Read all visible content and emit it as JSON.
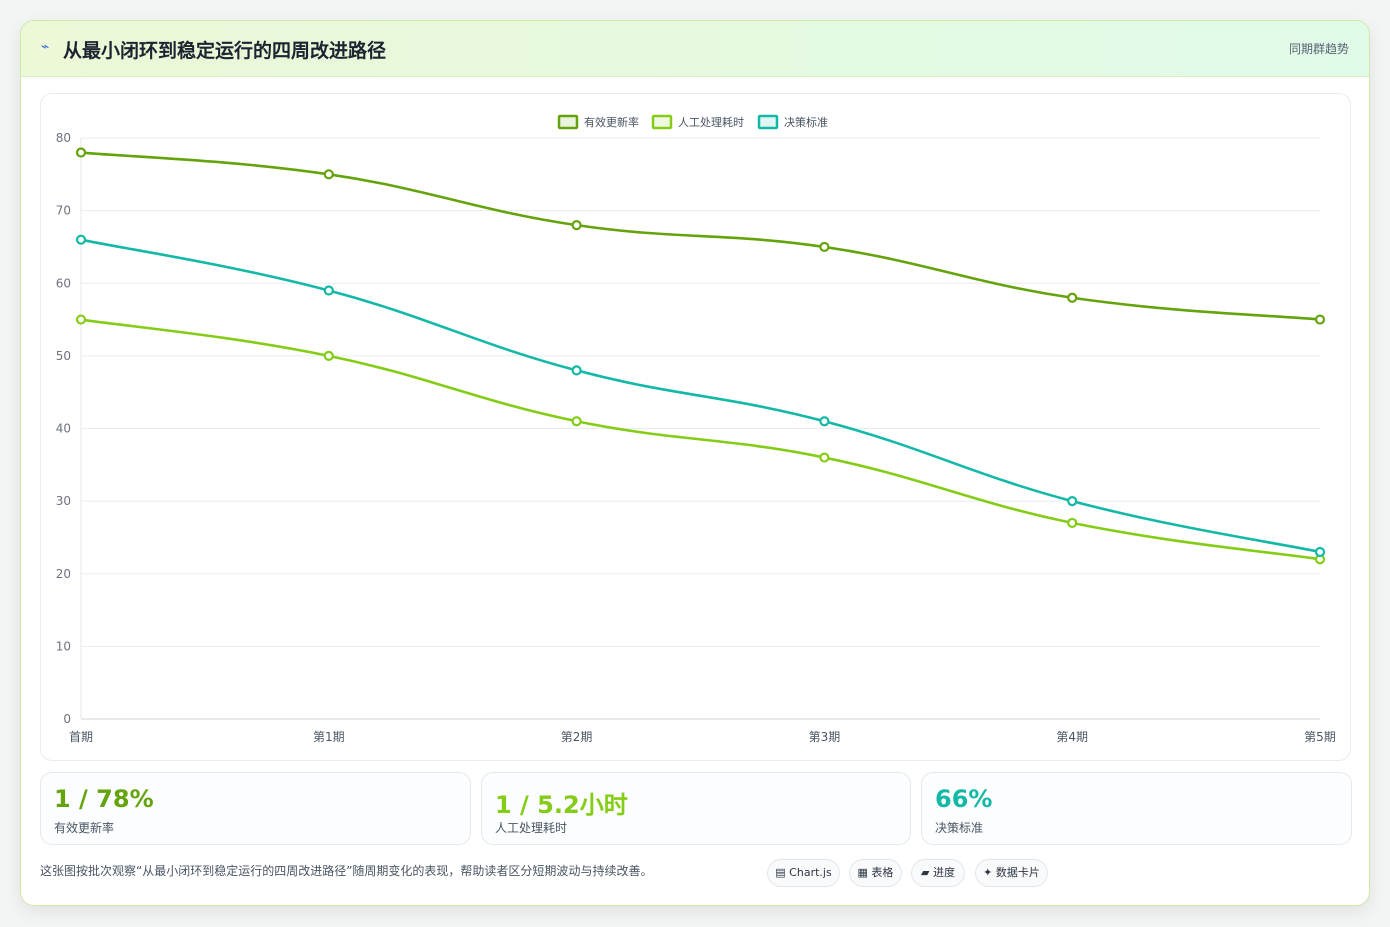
{
  "header": {
    "icon": "lightning-icon",
    "title": "从最小闭环到稳定运行的四周改进路径",
    "right_label": "同期群趋势"
  },
  "chart_data": {
    "type": "line",
    "categories": [
      "首期",
      "第1期",
      "第2期",
      "第3期",
      "第4期",
      "第5期"
    ],
    "series": [
      {
        "name": "有效更新率",
        "color": "#65a30d",
        "values": [
          78,
          75,
          68,
          65,
          58,
          55
        ]
      },
      {
        "name": "人工处理耗时",
        "color": "#84cc16",
        "values": [
          55,
          50,
          41,
          36,
          27,
          22
        ]
      },
      {
        "name": "决策标准",
        "color": "#14b8a6",
        "values": [
          66,
          59,
          48,
          41,
          30,
          23
        ]
      }
    ],
    "ylim": [
      0,
      80
    ],
    "yticks": [
      0,
      10,
      20,
      30,
      40,
      50,
      60,
      70,
      80
    ],
    "grid": true,
    "legend": "top-center"
  },
  "stats": [
    {
      "value": "1 / 78%",
      "label": "有效更新率",
      "color": "#65a30d"
    },
    {
      "value": "1 / 5.2小时",
      "label": "人工处理耗时",
      "color": "#84cc16"
    },
    {
      "value": "66%",
      "label": "决策标准",
      "color": "#14b8a6"
    }
  ],
  "footer": {
    "text": "这张图按批次观察“从最小闭环到稳定运行的四周改进路径”随周期变化的表现，帮助读者区分短期波动与持续改善。",
    "pills": [
      "▤ Chart.js",
      "▦ 表格",
      "▰ 进度",
      "✦ 数据卡片"
    ]
  }
}
